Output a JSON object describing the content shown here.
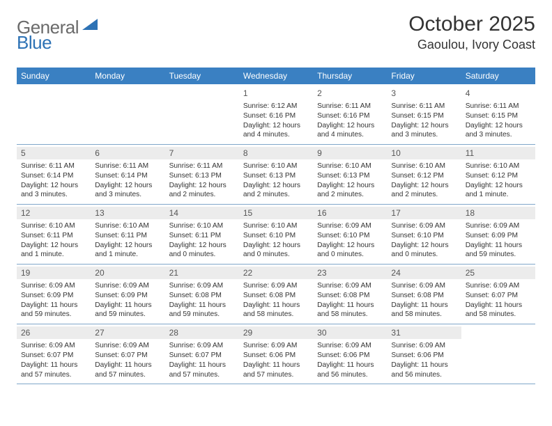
{
  "brand": {
    "general": "General",
    "blue": "Blue"
  },
  "colors": {
    "header_bg": "#3a80c2",
    "row_border": "#7fa6c9",
    "daynum_bg": "#ececec",
    "logo_gray": "#6a6a6a",
    "logo_blue": "#2d72b5"
  },
  "title": "October 2025",
  "location": "Gaoulou, Ivory Coast",
  "dow": [
    "Sunday",
    "Monday",
    "Tuesday",
    "Wednesday",
    "Thursday",
    "Friday",
    "Saturday"
  ],
  "weeks": [
    [
      {
        "n": "",
        "sr": "",
        "ss": "",
        "dl": ""
      },
      {
        "n": "",
        "sr": "",
        "ss": "",
        "dl": ""
      },
      {
        "n": "",
        "sr": "",
        "ss": "",
        "dl": ""
      },
      {
        "n": "1",
        "sr": "Sunrise: 6:12 AM",
        "ss": "Sunset: 6:16 PM",
        "dl": "Daylight: 12 hours and 4 minutes."
      },
      {
        "n": "2",
        "sr": "Sunrise: 6:11 AM",
        "ss": "Sunset: 6:16 PM",
        "dl": "Daylight: 12 hours and 4 minutes."
      },
      {
        "n": "3",
        "sr": "Sunrise: 6:11 AM",
        "ss": "Sunset: 6:15 PM",
        "dl": "Daylight: 12 hours and 3 minutes."
      },
      {
        "n": "4",
        "sr": "Sunrise: 6:11 AM",
        "ss": "Sunset: 6:15 PM",
        "dl": "Daylight: 12 hours and 3 minutes."
      }
    ],
    [
      {
        "n": "5",
        "sr": "Sunrise: 6:11 AM",
        "ss": "Sunset: 6:14 PM",
        "dl": "Daylight: 12 hours and 3 minutes."
      },
      {
        "n": "6",
        "sr": "Sunrise: 6:11 AM",
        "ss": "Sunset: 6:14 PM",
        "dl": "Daylight: 12 hours and 3 minutes."
      },
      {
        "n": "7",
        "sr": "Sunrise: 6:11 AM",
        "ss": "Sunset: 6:13 PM",
        "dl": "Daylight: 12 hours and 2 minutes."
      },
      {
        "n": "8",
        "sr": "Sunrise: 6:10 AM",
        "ss": "Sunset: 6:13 PM",
        "dl": "Daylight: 12 hours and 2 minutes."
      },
      {
        "n": "9",
        "sr": "Sunrise: 6:10 AM",
        "ss": "Sunset: 6:13 PM",
        "dl": "Daylight: 12 hours and 2 minutes."
      },
      {
        "n": "10",
        "sr": "Sunrise: 6:10 AM",
        "ss": "Sunset: 6:12 PM",
        "dl": "Daylight: 12 hours and 2 minutes."
      },
      {
        "n": "11",
        "sr": "Sunrise: 6:10 AM",
        "ss": "Sunset: 6:12 PM",
        "dl": "Daylight: 12 hours and 1 minute."
      }
    ],
    [
      {
        "n": "12",
        "sr": "Sunrise: 6:10 AM",
        "ss": "Sunset: 6:11 PM",
        "dl": "Daylight: 12 hours and 1 minute."
      },
      {
        "n": "13",
        "sr": "Sunrise: 6:10 AM",
        "ss": "Sunset: 6:11 PM",
        "dl": "Daylight: 12 hours and 1 minute."
      },
      {
        "n": "14",
        "sr": "Sunrise: 6:10 AM",
        "ss": "Sunset: 6:11 PM",
        "dl": "Daylight: 12 hours and 0 minutes."
      },
      {
        "n": "15",
        "sr": "Sunrise: 6:10 AM",
        "ss": "Sunset: 6:10 PM",
        "dl": "Daylight: 12 hours and 0 minutes."
      },
      {
        "n": "16",
        "sr": "Sunrise: 6:09 AM",
        "ss": "Sunset: 6:10 PM",
        "dl": "Daylight: 12 hours and 0 minutes."
      },
      {
        "n": "17",
        "sr": "Sunrise: 6:09 AM",
        "ss": "Sunset: 6:10 PM",
        "dl": "Daylight: 12 hours and 0 minutes."
      },
      {
        "n": "18",
        "sr": "Sunrise: 6:09 AM",
        "ss": "Sunset: 6:09 PM",
        "dl": "Daylight: 11 hours and 59 minutes."
      }
    ],
    [
      {
        "n": "19",
        "sr": "Sunrise: 6:09 AM",
        "ss": "Sunset: 6:09 PM",
        "dl": "Daylight: 11 hours and 59 minutes."
      },
      {
        "n": "20",
        "sr": "Sunrise: 6:09 AM",
        "ss": "Sunset: 6:09 PM",
        "dl": "Daylight: 11 hours and 59 minutes."
      },
      {
        "n": "21",
        "sr": "Sunrise: 6:09 AM",
        "ss": "Sunset: 6:08 PM",
        "dl": "Daylight: 11 hours and 59 minutes."
      },
      {
        "n": "22",
        "sr": "Sunrise: 6:09 AM",
        "ss": "Sunset: 6:08 PM",
        "dl": "Daylight: 11 hours and 58 minutes."
      },
      {
        "n": "23",
        "sr": "Sunrise: 6:09 AM",
        "ss": "Sunset: 6:08 PM",
        "dl": "Daylight: 11 hours and 58 minutes."
      },
      {
        "n": "24",
        "sr": "Sunrise: 6:09 AM",
        "ss": "Sunset: 6:08 PM",
        "dl": "Daylight: 11 hours and 58 minutes."
      },
      {
        "n": "25",
        "sr": "Sunrise: 6:09 AM",
        "ss": "Sunset: 6:07 PM",
        "dl": "Daylight: 11 hours and 58 minutes."
      }
    ],
    [
      {
        "n": "26",
        "sr": "Sunrise: 6:09 AM",
        "ss": "Sunset: 6:07 PM",
        "dl": "Daylight: 11 hours and 57 minutes."
      },
      {
        "n": "27",
        "sr": "Sunrise: 6:09 AM",
        "ss": "Sunset: 6:07 PM",
        "dl": "Daylight: 11 hours and 57 minutes."
      },
      {
        "n": "28",
        "sr": "Sunrise: 6:09 AM",
        "ss": "Sunset: 6:07 PM",
        "dl": "Daylight: 11 hours and 57 minutes."
      },
      {
        "n": "29",
        "sr": "Sunrise: 6:09 AM",
        "ss": "Sunset: 6:06 PM",
        "dl": "Daylight: 11 hours and 57 minutes."
      },
      {
        "n": "30",
        "sr": "Sunrise: 6:09 AM",
        "ss": "Sunset: 6:06 PM",
        "dl": "Daylight: 11 hours and 56 minutes."
      },
      {
        "n": "31",
        "sr": "Sunrise: 6:09 AM",
        "ss": "Sunset: 6:06 PM",
        "dl": "Daylight: 11 hours and 56 minutes."
      },
      {
        "n": "",
        "sr": "",
        "ss": "",
        "dl": ""
      }
    ]
  ]
}
